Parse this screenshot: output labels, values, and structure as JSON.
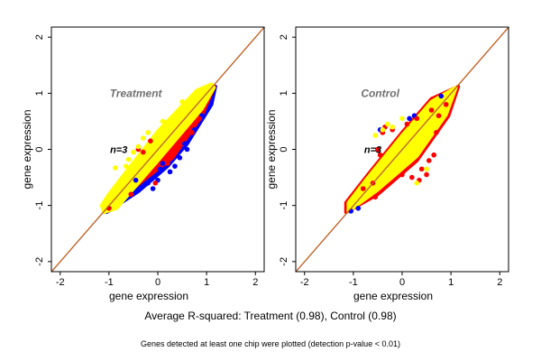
{
  "caption": "Average R-squared: Treatment (0.98), Control (0.98)",
  "footnote": "Genes detected at least one chip were plotted (detection p-value < 0.01)",
  "chart_data": [
    {
      "type": "scatter",
      "title": "Treatment",
      "annotation": {
        "text": "n=3",
        "x": -0.8,
        "y": 0.0
      },
      "title_pos": {
        "x": -0.45,
        "y": 1.0
      },
      "xlabel": "gene expression",
      "ylabel": "gene expression",
      "xlim": [
        -2.18,
        2.18
      ],
      "ylim": [
        -2.18,
        2.18
      ],
      "xticks": [
        -2,
        -1,
        0,
        1,
        2
      ],
      "yticks": [
        -2,
        -1,
        0,
        1,
        2
      ],
      "reference_line": "y = x",
      "colors": {
        "yellow": "#ffff00",
        "red": "#ff0000",
        "blue": "#0000ff",
        "line": "#e07000"
      },
      "clouds": [
        {
          "color": "blue",
          "points": [
            [
              -1.05,
              -1.12
            ],
            [
              -0.4,
              -0.75
            ],
            [
              0.2,
              -0.3
            ],
            [
              0.6,
              0.1
            ],
            [
              1.1,
              0.8
            ],
            [
              1.18,
              1.12
            ],
            [
              0.9,
              0.75
            ],
            [
              0,
              -0.2
            ],
            [
              -0.9,
              -1.05
            ]
          ]
        },
        {
          "color": "red",
          "points": [
            [
              -1.1,
              -1.12
            ],
            [
              -0.3,
              -0.55
            ],
            [
              0.3,
              -0.15
            ],
            [
              0.9,
              0.6
            ],
            [
              1.16,
              1.12
            ],
            [
              0.9,
              0.85
            ],
            [
              0,
              0.0
            ],
            [
              -0.9,
              -0.95
            ]
          ]
        },
        {
          "color": "yellow",
          "points": [
            [
              -1.15,
              -1.0
            ],
            [
              -1.1,
              -1.12
            ],
            [
              -0.85,
              -1.05
            ],
            [
              0,
              -0.2
            ],
            [
              0.9,
              0.72
            ],
            [
              1.15,
              1.1
            ],
            [
              1.1,
              1.16
            ],
            [
              0.8,
              1.05
            ],
            [
              0,
              0.32
            ],
            [
              -0.6,
              -0.35
            ],
            [
              -1.0,
              -0.8
            ]
          ]
        }
      ],
      "series": [
        {
          "color": "blue",
          "points": [
            [
              0.0,
              -0.55
            ],
            [
              -0.1,
              -0.7
            ],
            [
              0.45,
              -0.15
            ],
            [
              0.35,
              -0.3
            ],
            [
              0.55,
              0.1
            ],
            [
              0.1,
              -0.25
            ],
            [
              -0.2,
              -0.6
            ],
            [
              0.25,
              -0.4
            ],
            [
              -0.45,
              -0.55
            ],
            [
              0.6,
              0.0
            ],
            [
              0.05,
              -0.35
            ],
            [
              0.75,
              0.35
            ],
            [
              0.9,
              0.6
            ]
          ]
        },
        {
          "color": "red",
          "points": [
            [
              -0.4,
              0.0
            ],
            [
              -0.3,
              -0.05
            ],
            [
              0.2,
              -0.25
            ],
            [
              -0.05,
              -0.6
            ],
            [
              0.7,
              0.3
            ],
            [
              0.85,
              0.55
            ],
            [
              -0.55,
              -0.8
            ],
            [
              -1.0,
              -1.05
            ],
            [
              -0.15,
              0.15
            ]
          ]
        },
        {
          "color": "yellow",
          "points": [
            [
              -0.87,
              -0.33
            ],
            [
              -0.6,
              -0.18
            ],
            [
              -0.5,
              -0.05
            ],
            [
              -0.3,
              0.2
            ],
            [
              0.1,
              0.5
            ],
            [
              -0.2,
              0.3
            ],
            [
              -0.4,
              0.05
            ],
            [
              -0.65,
              -0.3
            ],
            [
              0.5,
              0.85
            ]
          ]
        }
      ]
    },
    {
      "type": "scatter",
      "title": "Control",
      "annotation": {
        "text": "n=3",
        "x": -0.6,
        "y": 0.0
      },
      "title_pos": {
        "x": -0.45,
        "y": 1.0
      },
      "xlabel": "gene expression",
      "ylabel": "gene expression",
      "xlim": [
        -2.18,
        2.18
      ],
      "ylim": [
        -2.18,
        2.18
      ],
      "xticks": [
        -2,
        -1,
        0,
        1,
        2
      ],
      "yticks": [
        -2,
        -1,
        0,
        1,
        2
      ],
      "reference_line": "y = x",
      "colors": {
        "yellow": "#ffff00",
        "red": "#ff0000",
        "blue": "#0000ff",
        "line": "#e07000"
      },
      "clouds": [
        {
          "color": "red",
          "points": [
            [
              -1.15,
              -1.12
            ],
            [
              -0.5,
              -0.8
            ],
            [
              0.3,
              -0.2
            ],
            [
              0.95,
              0.6
            ],
            [
              1.15,
              1.12
            ],
            [
              0.6,
              0.9
            ],
            [
              0,
              0.3
            ],
            [
              -0.7,
              -0.45
            ],
            [
              -1.15,
              -0.95
            ]
          ]
        },
        {
          "color": "yellow",
          "points": [
            [
              -1.1,
              -1.1
            ],
            [
              -0.5,
              -0.72
            ],
            [
              0.3,
              -0.12
            ],
            [
              0.9,
              0.62
            ],
            [
              1.1,
              1.1
            ],
            [
              0.6,
              0.85
            ],
            [
              0,
              0.25
            ],
            [
              -0.7,
              -0.5
            ],
            [
              -1.1,
              -0.95
            ]
          ]
        }
      ],
      "series": [
        {
          "color": "blue",
          "points": [
            [
              0.15,
              0.55
            ],
            [
              -0.9,
              -1.05
            ],
            [
              -1.05,
              -1.1
            ],
            [
              0.8,
              0.95
            ],
            [
              -0.45,
              0.35
            ],
            [
              0.25,
              0.6
            ]
          ]
        },
        {
          "color": "red",
          "points": [
            [
              -0.5,
              0.0
            ],
            [
              -0.45,
              -0.1
            ],
            [
              -0.4,
              0.3
            ],
            [
              0.2,
              -0.5
            ],
            [
              0.0,
              -0.45
            ],
            [
              0.35,
              -0.55
            ],
            [
              0.55,
              -0.2
            ],
            [
              0.4,
              -0.35
            ],
            [
              -0.6,
              -0.6
            ],
            [
              -0.8,
              -0.7
            ],
            [
              0.7,
              0.3
            ],
            [
              0.75,
              0.6
            ],
            [
              0.6,
              0.7
            ],
            [
              0.9,
              0.8
            ],
            [
              -0.2,
              0.35
            ],
            [
              0.1,
              0.45
            ],
            [
              0.5,
              -0.45
            ],
            [
              -0.55,
              -0.85
            ],
            [
              0.3,
              0.55
            ],
            [
              -0.35,
              0.4
            ],
            [
              0.65,
              -0.1
            ]
          ]
        },
        {
          "color": "yellow",
          "points": [
            [
              -0.55,
              0.25
            ],
            [
              -0.4,
              0.35
            ],
            [
              0.3,
              -0.6
            ],
            [
              -0.3,
              0.45
            ],
            [
              0.0,
              0.55
            ],
            [
              0.5,
              -0.35
            ],
            [
              -0.2,
              0.4
            ]
          ]
        }
      ]
    }
  ]
}
